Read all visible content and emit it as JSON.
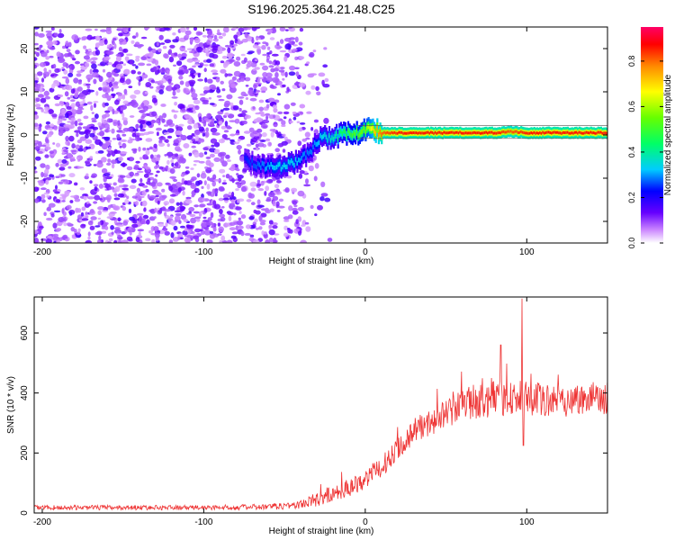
{
  "chart_data": [
    {
      "type": "heatmap",
      "title": "S196.2025.364.21.48.C25",
      "xlabel": "Height of straight line (km)",
      "ylabel": "Frequency (Hz)",
      "xlim": [
        -205,
        150
      ],
      "ylim": [
        -25,
        25
      ],
      "xticks": [
        -200,
        -100,
        0,
        100
      ],
      "yticks": [
        -20,
        -10,
        0,
        10,
        20
      ],
      "colorbar": {
        "label": "Normalized spectral amplitude",
        "range": [
          0,
          0.95
        ],
        "ticks": [
          0.0,
          0.2,
          0.4,
          0.6,
          0.8
        ],
        "tick_labels": [
          "0.0",
          "0.2",
          "0.4",
          "0.6",
          "0.8"
        ]
      },
      "noise_region_x": [
        -205,
        -35
      ],
      "ridge": {
        "x": [
          -75,
          -65,
          -55,
          -45,
          -38,
          -33,
          -28,
          -20,
          -12,
          -5,
          0,
          5,
          10,
          20,
          40,
          60,
          80,
          90,
          100,
          120,
          150
        ],
        "y": [
          -6,
          -7,
          -7.5,
          -6.5,
          -5,
          -3,
          -0.5,
          -0.5,
          0.5,
          0.3,
          1.5,
          1.2,
          0.5,
          0.5,
          0.5,
          0.5,
          0.5,
          0.8,
          0.5,
          0.5,
          0.5
        ],
        "amplitude": [
          0.25,
          0.3,
          0.35,
          0.35,
          0.3,
          0.3,
          0.35,
          0.4,
          0.5,
          0.55,
          0.6,
          0.75,
          0.85,
          0.9,
          0.9,
          0.9,
          0.9,
          0.85,
          0.9,
          0.9,
          0.9
        ]
      }
    },
    {
      "type": "line",
      "xlabel": "Height of straight line (km)",
      "ylabel": "SNR (10 * v/v)",
      "xlim": [
        -205,
        150
      ],
      "ylim": [
        0,
        720
      ],
      "xticks": [
        -200,
        -100,
        0,
        100
      ],
      "yticks": [
        0,
        200,
        400,
        600
      ],
      "series": [
        {
          "name": "SNR",
          "color": "#ee3333",
          "trend_x": [
            -205,
            -150,
            -100,
            -60,
            -40,
            -30,
            -20,
            -10,
            0,
            10,
            20,
            30,
            40,
            50,
            60,
            70,
            80,
            90,
            100,
            110,
            120,
            130,
            140,
            150
          ],
          "trend_y": [
            18,
            18,
            18,
            20,
            28,
            45,
            65,
            85,
            115,
            150,
            220,
            270,
            300,
            330,
            360,
            375,
            380,
            385,
            380,
            375,
            375,
            378,
            380,
            385
          ],
          "noise_amplitude": [
            8,
            8,
            8,
            10,
            15,
            25,
            30,
            30,
            35,
            35,
            40,
            40,
            45,
            50,
            55,
            60,
            60,
            60,
            60,
            55,
            55,
            55,
            55,
            55
          ],
          "spikes": [
            {
              "x": 97,
              "y": 715
            },
            {
              "x": 98,
              "y": 225
            },
            {
              "x": 84,
              "y": 560
            }
          ]
        }
      ]
    }
  ]
}
